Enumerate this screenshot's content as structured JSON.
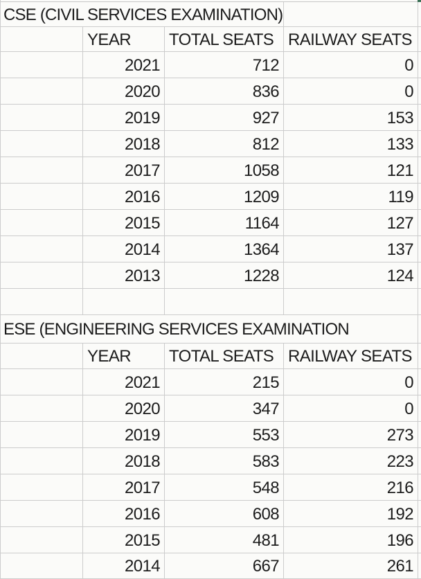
{
  "colors": {
    "gridline": "#cccccc",
    "cell_background": "#fbfbf9",
    "text": "#1c1c1c",
    "selection_green": "#3a7055"
  },
  "tables": [
    {
      "title": "CSE (CIVIL SERVICES EXAMINATION)",
      "headers": [
        "YEAR",
        "TOTAL SEATS",
        "RAILWAY SEATS"
      ],
      "rows": [
        [
          2021,
          712,
          0
        ],
        [
          2020,
          836,
          0
        ],
        [
          2019,
          927,
          153
        ],
        [
          2018,
          812,
          133
        ],
        [
          2017,
          1058,
          121
        ],
        [
          2016,
          1209,
          119
        ],
        [
          2015,
          1164,
          127
        ],
        [
          2014,
          1364,
          137
        ],
        [
          2013,
          1228,
          124
        ]
      ]
    },
    {
      "title": "ESE (ENGINEERING SERVICES EXAMINATION",
      "headers": [
        "YEAR",
        "TOTAL SEATS",
        "RAILWAY SEATS"
      ],
      "rows": [
        [
          2021,
          215,
          0
        ],
        [
          2020,
          347,
          0
        ],
        [
          2019,
          553,
          273
        ],
        [
          2018,
          583,
          223
        ],
        [
          2017,
          548,
          216
        ],
        [
          2016,
          608,
          192
        ],
        [
          2015,
          481,
          196
        ],
        [
          2014,
          667,
          261
        ]
      ]
    }
  ]
}
